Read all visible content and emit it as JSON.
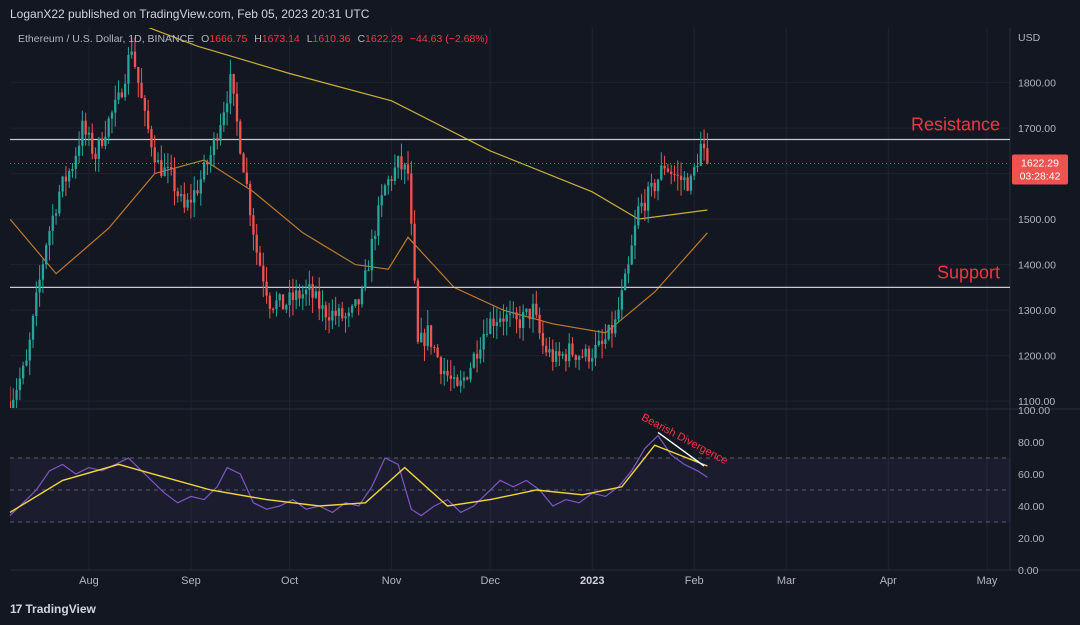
{
  "header": {
    "publisher_line": "LoganX22 published on TradingView.com, Feb 05, 2023 20:31 UTC"
  },
  "legend": {
    "symbol": "Ethereum / U.S. Dollar, 1D, BINANCE",
    "open_label": "O",
    "open": "1666.75",
    "high_label": "H",
    "high": "1673.14",
    "low_label": "L",
    "low": "1610.36",
    "close_label": "C",
    "close": "1622.29",
    "change": "−44.63 (−2.68%)"
  },
  "footer": {
    "brand": "TradingView",
    "brand_mark": "17"
  },
  "colors": {
    "background": "#131722",
    "up": "#26a69a",
    "down": "#ef5350",
    "ma_long": "#c9b037",
    "ma_short": "#c07a2a",
    "rsi_line": "#7e57c2",
    "rsi_ma": "#f0d53c",
    "annotation": "#f23645"
  },
  "chart_data": [
    {
      "type": "candlestick",
      "currency_label": "USD",
      "y_ticks": [
        1100,
        1200,
        1300,
        1400,
        1500,
        1600,
        1700,
        1800
      ],
      "y_tick_labels": [
        "1100.00",
        "1200.00",
        "1300.00",
        "1400.00",
        "1500.00",
        "1600.00",
        "1700.00",
        "1800.00"
      ],
      "ylim": [
        1085,
        1920
      ],
      "x_tick_labels": [
        "Aug",
        "Sep",
        "Oct",
        "Nov",
        "Dec",
        "2023",
        "Feb",
        "Mar",
        "Apr",
        "May"
      ],
      "x_tick_dates": [
        "2022-08-01",
        "2022-09-01",
        "2022-10-01",
        "2022-11-01",
        "2022-12-01",
        "2023-01-01",
        "2023-02-01",
        "2023-03-01",
        "2023-04-01",
        "2023-05-01"
      ],
      "xlim": [
        "2022-07-08",
        "2023-05-08"
      ],
      "price_series": {
        "name": "",
        "dates": [
          "2022-07-08",
          "2022-07-13",
          "2022-07-16",
          "2022-07-19",
          "2022-07-23",
          "2022-07-27",
          "2022-07-30",
          "2022-08-03",
          "2022-08-06",
          "2022-08-10",
          "2022-08-14",
          "2022-08-18",
          "2022-08-22",
          "2022-08-26",
          "2022-08-30",
          "2022-09-03",
          "2022-09-07",
          "2022-09-10",
          "2022-09-13",
          "2022-09-17",
          "2022-09-21",
          "2022-09-25",
          "2022-09-29",
          "2022-10-03",
          "2022-10-07",
          "2022-10-11",
          "2022-10-15",
          "2022-10-19",
          "2022-10-23",
          "2022-10-27",
          "2022-10-30",
          "2022-11-03",
          "2022-11-06",
          "2022-11-09",
          "2022-11-12",
          "2022-11-16",
          "2022-11-21",
          "2022-11-25",
          "2022-11-30",
          "2022-12-04",
          "2022-12-09",
          "2022-12-14",
          "2022-12-17",
          "2022-12-21",
          "2022-12-25",
          "2022-12-30",
          "2023-01-04",
          "2023-01-08",
          "2023-01-12",
          "2023-01-15",
          "2023-01-19",
          "2023-01-23",
          "2023-01-27",
          "2023-01-31",
          "2023-02-03",
          "2023-02-05"
        ],
        "values": [
          1100,
          1180,
          1320,
          1450,
          1560,
          1620,
          1700,
          1640,
          1700,
          1760,
          1880,
          1720,
          1620,
          1590,
          1520,
          1570,
          1640,
          1720,
          1800,
          1620,
          1430,
          1320,
          1310,
          1330,
          1340,
          1300,
          1290,
          1280,
          1330,
          1480,
          1570,
          1620,
          1600,
          1220,
          1250,
          1180,
          1120,
          1180,
          1270,
          1290,
          1270,
          1300,
          1220,
          1190,
          1210,
          1200,
          1220,
          1270,
          1390,
          1520,
          1560,
          1620,
          1590,
          1580,
          1660,
          1622.29
        ]
      },
      "ma_long": {
        "name": "",
        "dates": [
          "2022-08-05",
          "2022-09-03",
          "2022-10-01",
          "2022-11-01",
          "2022-12-01",
          "2023-01-01",
          "2023-01-15",
          "2023-02-05"
        ],
        "values": [
          1960,
          1880,
          1820,
          1760,
          1650,
          1560,
          1500,
          1520
        ]
      },
      "ma_short": {
        "name": "",
        "dates": [
          "2022-07-08",
          "2022-07-22",
          "2022-08-07",
          "2022-08-21",
          "2022-09-05",
          "2022-09-20",
          "2022-10-05",
          "2022-10-21",
          "2022-10-31",
          "2022-11-06",
          "2022-11-20",
          "2022-12-05",
          "2022-12-20",
          "2023-01-05",
          "2023-01-20",
          "2023-02-05"
        ],
        "values": [
          1500,
          1380,
          1480,
          1600,
          1630,
          1560,
          1470,
          1400,
          1390,
          1460,
          1350,
          1300,
          1270,
          1250,
          1340,
          1470
        ]
      },
      "horizontal_lines": [
        {
          "label": "Resistance",
          "price": 1675
        },
        {
          "label": "Support",
          "price": 1350
        }
      ],
      "last_price_label": "1622.29",
      "countdown_label": "03:28:42"
    },
    {
      "type": "line",
      "y_ticks": [
        0,
        20,
        40,
        60,
        80,
        100
      ],
      "y_tick_labels": [
        "0.00",
        "20.00",
        "40.00",
        "60.00",
        "80.00",
        "100.00"
      ],
      "ylim": [
        0,
        100
      ],
      "band": [
        30,
        70
      ],
      "midline": 50,
      "series": [
        {
          "name": "",
          "dates": [
            "2022-07-08",
            "2022-07-12",
            "2022-07-16",
            "2022-07-20",
            "2022-07-24",
            "2022-07-28",
            "2022-08-01",
            "2022-08-05",
            "2022-08-09",
            "2022-08-13",
            "2022-08-16",
            "2022-08-20",
            "2022-08-24",
            "2022-08-28",
            "2022-09-01",
            "2022-09-05",
            "2022-09-09",
            "2022-09-12",
            "2022-09-16",
            "2022-09-20",
            "2022-09-24",
            "2022-09-28",
            "2022-10-02",
            "2022-10-06",
            "2022-10-10",
            "2022-10-14",
            "2022-10-18",
            "2022-10-22",
            "2022-10-26",
            "2022-10-30",
            "2022-11-03",
            "2022-11-07",
            "2022-11-10",
            "2022-11-14",
            "2022-11-18",
            "2022-11-22",
            "2022-11-26",
            "2022-11-30",
            "2022-12-04",
            "2022-12-08",
            "2022-12-12",
            "2022-12-16",
            "2022-12-20",
            "2022-12-24",
            "2022-12-28",
            "2023-01-01",
            "2023-01-05",
            "2023-01-09",
            "2023-01-13",
            "2023-01-17",
            "2023-01-21",
            "2023-01-25",
            "2023-01-29",
            "2023-02-02",
            "2023-02-05"
          ],
          "values": [
            34,
            42,
            50,
            62,
            66,
            60,
            64,
            62,
            66,
            70,
            64,
            56,
            48,
            42,
            46,
            44,
            52,
            64,
            60,
            42,
            38,
            40,
            44,
            38,
            40,
            36,
            42,
            40,
            52,
            70,
            66,
            38,
            34,
            40,
            44,
            36,
            40,
            48,
            56,
            52,
            56,
            50,
            40,
            44,
            42,
            48,
            46,
            52,
            62,
            76,
            84,
            72,
            66,
            62,
            58
          ]
        },
        {
          "name": "",
          "dates": [
            "2022-07-08",
            "2022-07-24",
            "2022-08-10",
            "2022-08-24",
            "2022-09-07",
            "2022-09-24",
            "2022-10-10",
            "2022-10-24",
            "2022-11-05",
            "2022-11-18",
            "2022-12-01",
            "2022-12-15",
            "2022-12-29",
            "2023-01-10",
            "2023-01-20",
            "2023-02-05"
          ],
          "values": [
            36,
            56,
            66,
            58,
            50,
            44,
            40,
            42,
            64,
            40,
            44,
            50,
            47,
            52,
            78,
            65
          ]
        }
      ],
      "annotation": {
        "label": "Bearish Divergence"
      }
    }
  ]
}
